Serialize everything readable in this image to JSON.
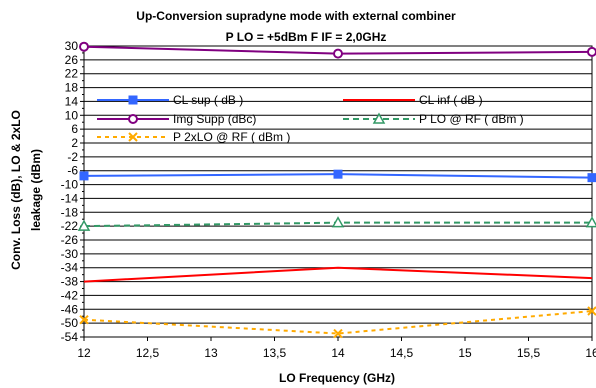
{
  "chart_data": {
    "type": "line",
    "title": "Up-Conversion supradyne mode with external combiner",
    "subtitle": "P LO = +5dBm F IF = 2,0GHz",
    "xlabel": "LO Frequency (GHz)",
    "ylabel_line1": "Conv. Loss (dB), LO & 2xLO",
    "ylabel_line2": "leakage (dBm)",
    "xlim": [
      12,
      16
    ],
    "ylim": [
      -54,
      30
    ],
    "x_ticks": [
      "12",
      "12,5",
      "13",
      "13,5",
      "14",
      "14,5",
      "15",
      "15,5",
      "16"
    ],
    "y_ticks": [
      "30",
      "26",
      "22",
      "18",
      "14",
      "10",
      "6",
      "2",
      "-2",
      "-6",
      "-10",
      "-14",
      "-18",
      "-22",
      "-26",
      "-30",
      "-34",
      "-38",
      "-42",
      "-46",
      "-50",
      "-54"
    ],
    "y_minor_ticks": [
      28,
      24,
      20,
      16,
      12,
      8,
      4,
      0,
      -4,
      -8,
      -12,
      -16,
      -20,
      -24,
      -28,
      -32,
      -36,
      -40,
      -44,
      -48,
      -52
    ],
    "grid": "horizontal",
    "legend_placement": "upper-middle",
    "x": [
      12,
      14,
      16
    ],
    "series": [
      {
        "name": "CL sup ( dB )",
        "values": [
          -7.5,
          -7.0,
          -8.0
        ],
        "color": "#3366ff",
        "marker": "square",
        "dash": "solid"
      },
      {
        "name": "CL inf ( dB )",
        "values": [
          -38.0,
          -34.0,
          -37.0
        ],
        "color": "#ff0000",
        "marker": "none",
        "dash": "solid"
      },
      {
        "name": "Img Supp (dBc)",
        "values": [
          29.8,
          27.8,
          28.3
        ],
        "color": "#800080",
        "marker": "circle",
        "dash": "solid"
      },
      {
        "name": "P LO @ RF ( dBm )",
        "values": [
          -22.0,
          -21.0,
          -21.0
        ],
        "color": "#339966",
        "marker": "triangle",
        "dash": "dashed"
      },
      {
        "name": "P 2xLO @ RF ( dBm )",
        "values": [
          -49.0,
          -53.0,
          -46.5
        ],
        "color": "#ffaa00",
        "marker": "x",
        "dash": "dotted"
      }
    ]
  }
}
